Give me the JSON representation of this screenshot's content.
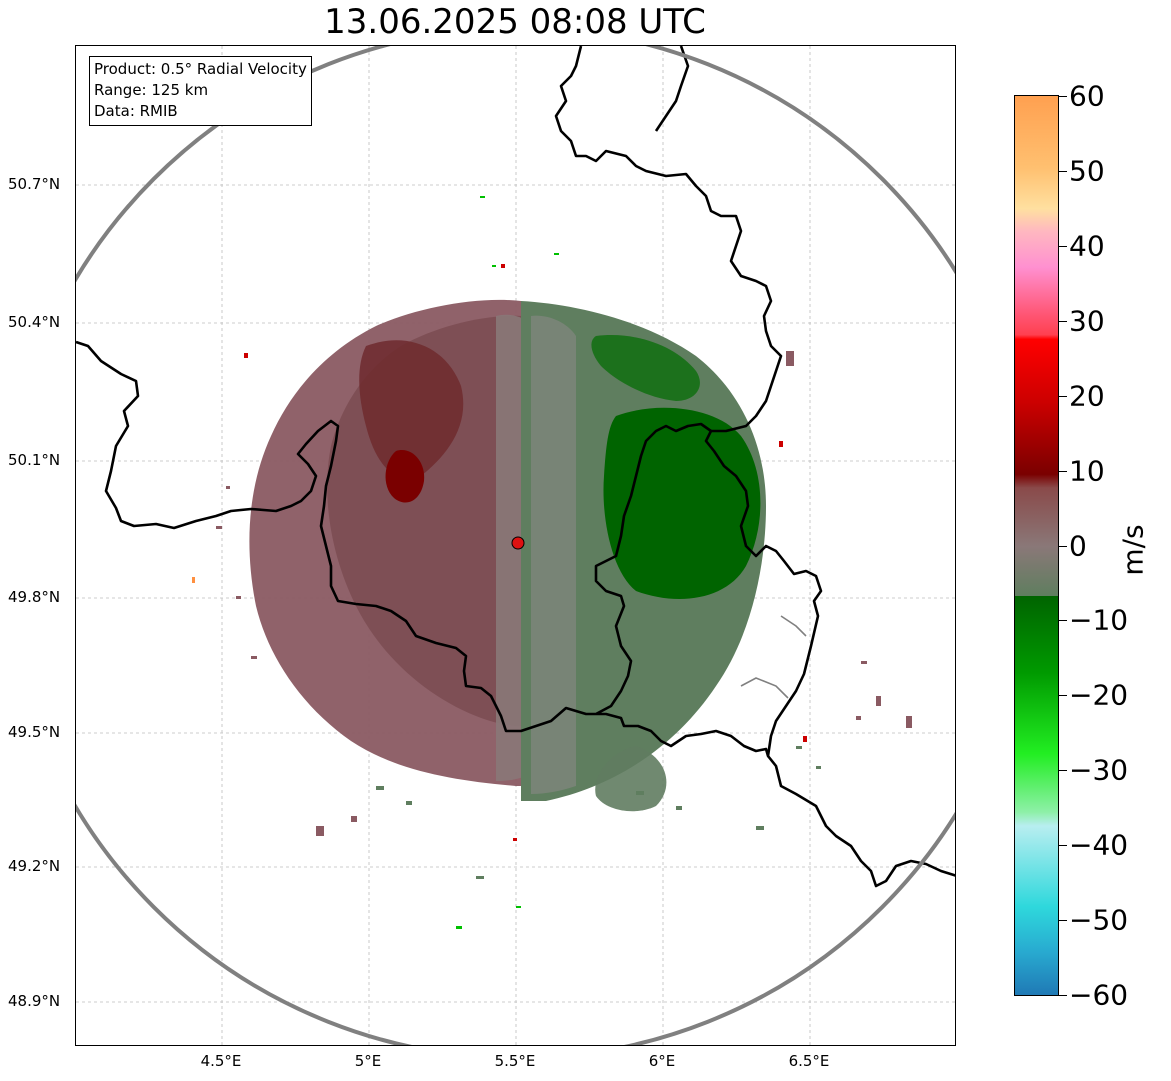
{
  "title": "13.06.2025 08:08 UTC",
  "info": {
    "product": "Product: 0.5° Radial Velocity",
    "range": "Range: 125 km",
    "data": "Data: RMIB"
  },
  "lat_labels": [
    "50.7°N",
    "50.4°N",
    "50.1°N",
    "49.8°N",
    "49.5°N",
    "49.2°N",
    "48.9°N"
  ],
  "lon_labels": [
    "4.5°E",
    "5°E",
    "5.5°E",
    "6°E",
    "6.5°E"
  ],
  "colorbar": {
    "unit": "m/s",
    "ticks": [
      "60",
      "50",
      "40",
      "30",
      "20",
      "10",
      "0",
      "−10",
      "−20",
      "−30",
      "−40",
      "−50",
      "−60"
    ],
    "range": [
      -60,
      60
    ],
    "colors": {
      "neg_60": "#1f77b4",
      "neg_50": "#2ed8dc",
      "neg_40": "#a8e8ee",
      "neg_30": "#22ee22",
      "neg_20": "#00a800",
      "neg_10": "#006400",
      "zero": "#857575",
      "pos_10": "#7a0000",
      "pos_20": "#cc0000",
      "pos_30": "#ff4060",
      "pos_40": "#ff90c8",
      "pos_50": "#ffd080",
      "pos_60": "#ffa050"
    }
  },
  "map": {
    "radar_site": "radar-marker",
    "range_ring_color": "#808080",
    "border_color": "#000000",
    "colors": {
      "inbound": "#5a7a5a",
      "strong_inbound": "#006400",
      "outbound": "#8a5a5e",
      "strong_outbound": "#7a0000",
      "site_marker": "#dd1111"
    }
  }
}
